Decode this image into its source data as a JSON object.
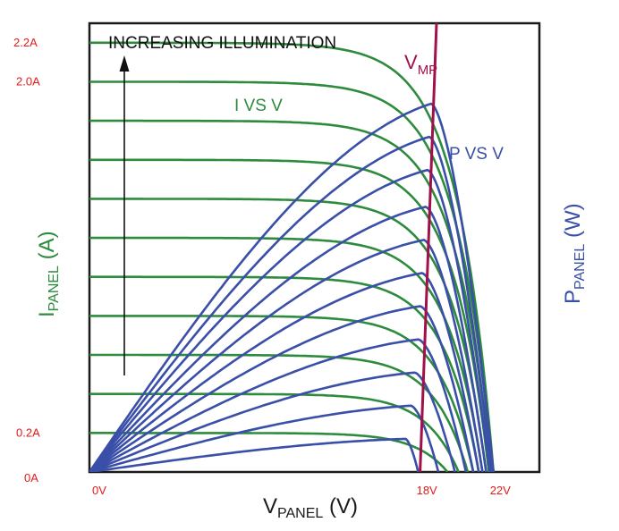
{
  "colors": {
    "current_curve": "#2e8b3e",
    "power_curve": "#3a4fa8",
    "vmp_line": "#a0104a",
    "tick_label": "#e21b1b",
    "frame": "#1a1a1a"
  },
  "chart_data": {
    "type": "line",
    "title": "",
    "annotation_illumination": "INCREASING ILLUMINATION",
    "label_i_vs_v": "I VS V",
    "label_p_vs_v": "P VS V",
    "vmp_label_main": "V",
    "vmp_label_sub": "MP",
    "xlabel_main": "V",
    "xlabel_sub": "PANEL",
    "xlabel_unit": " (V)",
    "ylabel_left_main": "I",
    "ylabel_left_sub": "PANEL",
    "ylabel_left_unit": " (A)",
    "ylabel_right_main": "P",
    "ylabel_right_sub": "PANEL",
    "ylabel_right_unit": " (W)",
    "x_ticks": [
      {
        "value": 0,
        "label": "0V"
      },
      {
        "value": 18,
        "label": "18V"
      },
      {
        "value": 22,
        "label": "22V"
      }
    ],
    "y_ticks": [
      {
        "value": 0,
        "label": "0A"
      },
      {
        "value": 0.2,
        "label": "0.2A"
      },
      {
        "value": 2.0,
        "label": "2.0A"
      },
      {
        "value": 2.2,
        "label": "2.2A"
      }
    ],
    "xlim": [
      0,
      24.5
    ],
    "ylim": [
      0,
      2.3
    ],
    "grid": false,
    "i_vs_v_curves": [
      {
        "isc": 0.2,
        "voc": 19.5
      },
      {
        "isc": 0.4,
        "voc": 20.1
      },
      {
        "isc": 0.6,
        "voc": 20.6
      },
      {
        "isc": 0.8,
        "voc": 20.9
      },
      {
        "isc": 1.0,
        "voc": 21.2
      },
      {
        "isc": 1.2,
        "voc": 21.4
      },
      {
        "isc": 1.4,
        "voc": 21.6
      },
      {
        "isc": 1.6,
        "voc": 21.75
      },
      {
        "isc": 1.8,
        "voc": 21.85
      },
      {
        "isc": 2.0,
        "voc": 21.95
      },
      {
        "isc": 2.2,
        "voc": 22.0
      }
    ],
    "p_vs_v_curves": [
      {
        "vmp": 17.2,
        "v_end": 17.9,
        "pmax_rel": 0.09
      },
      {
        "vmp": 17.5,
        "v_end": 19.0,
        "pmax_rel": 0.18
      },
      {
        "vmp": 17.7,
        "v_end": 19.9,
        "pmax_rel": 0.27
      },
      {
        "vmp": 17.9,
        "v_end": 20.5,
        "pmax_rel": 0.36
      },
      {
        "vmp": 18.0,
        "v_end": 20.9,
        "pmax_rel": 0.45
      },
      {
        "vmp": 18.1,
        "v_end": 21.2,
        "pmax_rel": 0.54
      },
      {
        "vmp": 18.2,
        "v_end": 21.4,
        "pmax_rel": 0.63
      },
      {
        "vmp": 18.3,
        "v_end": 21.6,
        "pmax_rel": 0.72
      },
      {
        "vmp": 18.4,
        "v_end": 21.8,
        "pmax_rel": 0.82
      },
      {
        "vmp": 18.5,
        "v_end": 21.9,
        "pmax_rel": 0.91
      },
      {
        "vmp": 18.6,
        "v_end": 22.0,
        "pmax_rel": 1.0
      }
    ],
    "vmp_line": {
      "v_bottom": 18.0,
      "v_top": 18.9
    }
  }
}
